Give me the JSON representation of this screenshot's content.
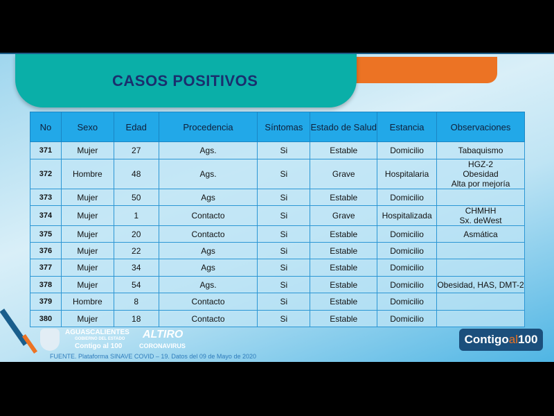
{
  "title": "CASOS POSITIVOS",
  "headers": [
    "No",
    "Sexo",
    "Edad",
    "Procedencia",
    "Síntomas",
    "Estado de Salud",
    "Estancia",
    "Observaciones"
  ],
  "rows": [
    [
      "371",
      "Mujer",
      "27",
      "Ags.",
      "Si",
      "Estable",
      "Domicilio",
      "Tabaquismo"
    ],
    [
      "372",
      "Hombre",
      "48",
      "Ags.",
      "Si",
      "Grave",
      "Hospitalaria",
      "HGZ-2\nObesidad\nAlta por mejoría"
    ],
    [
      "373",
      "Mujer",
      "50",
      "Ags",
      "Si",
      "Estable",
      "Domicilio",
      ""
    ],
    [
      "374",
      "Mujer",
      "1",
      "Contacto",
      "Si",
      "Grave",
      "Hospitalizada",
      "CHMHH\nSx. deWest"
    ],
    [
      "375",
      "Mujer",
      "20",
      "Contacto",
      "Si",
      "Estable",
      "Domicilio",
      "Asmática"
    ],
    [
      "376",
      "Mujer",
      "22",
      "Ags",
      "Si",
      "Estable",
      "Domicilio",
      ""
    ],
    [
      "377",
      "Mujer",
      "34",
      "Ags",
      "Si",
      "Estable",
      "Domicilio",
      ""
    ],
    [
      "378",
      "Mujer",
      "54",
      "Ags.",
      "Si",
      "Estable",
      "Domicilio",
      "Obesidad, HAS, DMT-2"
    ],
    [
      "379",
      "Hombre",
      "8",
      "Contacto",
      "Si",
      "Estable",
      "Domicilio",
      ""
    ],
    [
      "380",
      "Mujer",
      "18",
      "Contacto",
      "Si",
      "Estable",
      "Domicilio",
      ""
    ]
  ],
  "footer": "FUENTE. Plataforma SINAVE COVID – 19. Datos del 09 de Mayo de 2020",
  "logos": {
    "state": "AGUASCALIENTES",
    "gov": "GOBIERNO DEL ESTADO",
    "contigo": "Contigo al 100",
    "altiro": "ALTIRO",
    "corona": "CORONAVIRUS",
    "badge_a": "Contigo",
    "badge_b": "al",
    "badge_c": "100"
  },
  "colors": {
    "header": "#22a8e8",
    "title": "#1a2f6e",
    "teal": "#0aafa8",
    "orange": "#ec7324"
  }
}
